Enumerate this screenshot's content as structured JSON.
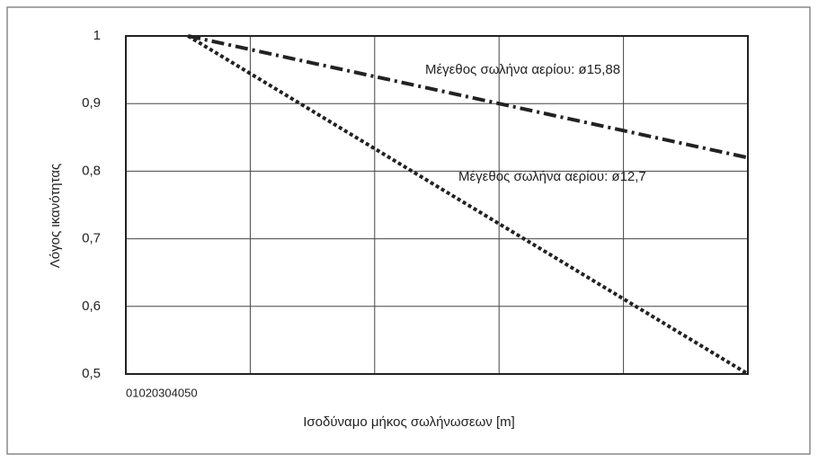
{
  "chart_data": {
    "type": "line",
    "y_label": "Λόγος ικανότητας",
    "x_label": "Ισοδύναμο μήκος σωλήνωσεων [m]",
    "x": [
      5,
      50
    ],
    "series": [
      {
        "name": "Μέγεθος σωλήνα αερίου: ø15,88",
        "color": "#222222",
        "dash": "dashdot",
        "values": [
          1,
          0.82
        ]
      },
      {
        "name": "Μέγεθος σωλήνα αερίου: ø12,7",
        "color": "#222222",
        "dash": "dotted",
        "values": [
          1,
          0.5
        ]
      }
    ],
    "xlim": [
      0,
      50
    ],
    "xticks": [
      0,
      10,
      20,
      30,
      40,
      50
    ],
    "ylim": [
      0.5,
      1
    ],
    "yticks": [
      {
        "value": 0.5,
        "label": "0,5"
      },
      {
        "value": 0.6,
        "label": "0,6"
      },
      {
        "value": 0.7,
        "label": "0,7"
      },
      {
        "value": 0.8,
        "label": "0,8"
      },
      {
        "value": 0.9,
        "label": "0,9"
      },
      1
    ],
    "grid": true
  }
}
